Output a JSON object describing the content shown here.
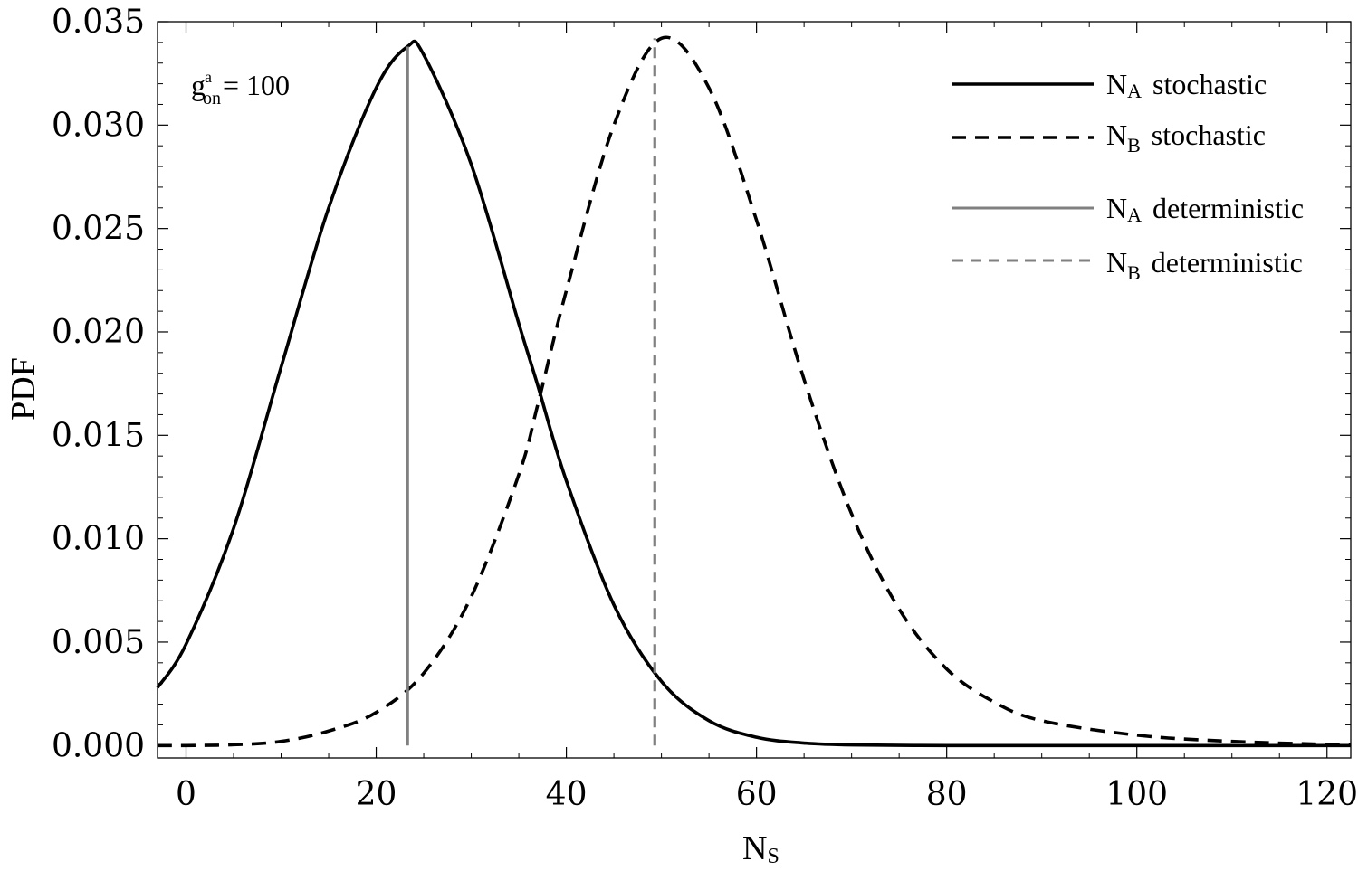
{
  "chart_data": {
    "type": "line",
    "xlabel": {
      "main": "N",
      "sub": "S"
    },
    "ylabel": "PDF",
    "xlim": [
      -3,
      122.5
    ],
    "ylim": [
      -0.0006,
      0.035
    ],
    "x_ticks": [
      0,
      20,
      40,
      60,
      80,
      100,
      120
    ],
    "x_tick_labels": [
      "0",
      "20",
      "40",
      "60",
      "80",
      "100",
      "120"
    ],
    "y_ticks": [
      0.0,
      0.005,
      0.01,
      0.015,
      0.02,
      0.025,
      0.03,
      0.035
    ],
    "y_tick_labels": [
      "0.000",
      "0.005",
      "0.010",
      "0.015",
      "0.020",
      "0.025",
      "0.030",
      "0.035"
    ],
    "grid": false,
    "legend_position": "top-right",
    "annotation": {
      "base": "g",
      "sup": "a",
      "sub": "on",
      "rest": "= 100"
    },
    "series": [
      {
        "label_main": "N",
        "label_sub": "A",
        "label_rest": "stochastic",
        "style": "solid",
        "color": "#000000",
        "x": [
          -3,
          0,
          5,
          10,
          15,
          20,
          23.3,
          25,
          30,
          35,
          37,
          40,
          45,
          50,
          55,
          60,
          65,
          70,
          80,
          90,
          100,
          110,
          122.5
        ],
        "y": [
          0.0028,
          0.0049,
          0.0105,
          0.0183,
          0.026,
          0.0318,
          0.0338,
          0.0334,
          0.0281,
          0.0204,
          0.0174,
          0.0128,
          0.0068,
          0.0031,
          0.0012,
          0.0004,
          0.00012,
          3e-05,
          0.0,
          0.0,
          0.0,
          0.0,
          0.0
        ]
      },
      {
        "label_main": "N",
        "label_sub": "B",
        "label_rest": "stochastic",
        "style": "dashed",
        "color": "#000000",
        "x": [
          -3,
          0,
          5,
          10,
          15,
          20,
          25,
          30,
          35,
          37,
          40,
          45,
          50,
          55,
          60,
          65,
          70,
          75,
          80,
          85,
          90,
          100,
          110,
          122.5
        ],
        "y": [
          0.0,
          0.0,
          4e-05,
          0.0002,
          0.0007,
          0.0016,
          0.0035,
          0.0072,
          0.0131,
          0.0165,
          0.022,
          0.03,
          0.0342,
          0.0318,
          0.0254,
          0.0177,
          0.0112,
          0.0066,
          0.0037,
          0.0021,
          0.0012,
          0.0005,
          0.0002,
          3e-05
        ]
      },
      {
        "label_main": "N",
        "label_sub": "A",
        "label_rest": "deterministic",
        "style": "solid",
        "color": "#808080",
        "x": [
          23.3,
          23.3
        ],
        "y": [
          0.0,
          0.0338
        ]
      },
      {
        "label_main": "N",
        "label_sub": "B",
        "label_rest": "deterministic",
        "style": "dashed",
        "color": "#808080",
        "x": [
          49.3,
          49.3
        ],
        "y": [
          0.0,
          0.0342
        ]
      }
    ]
  }
}
